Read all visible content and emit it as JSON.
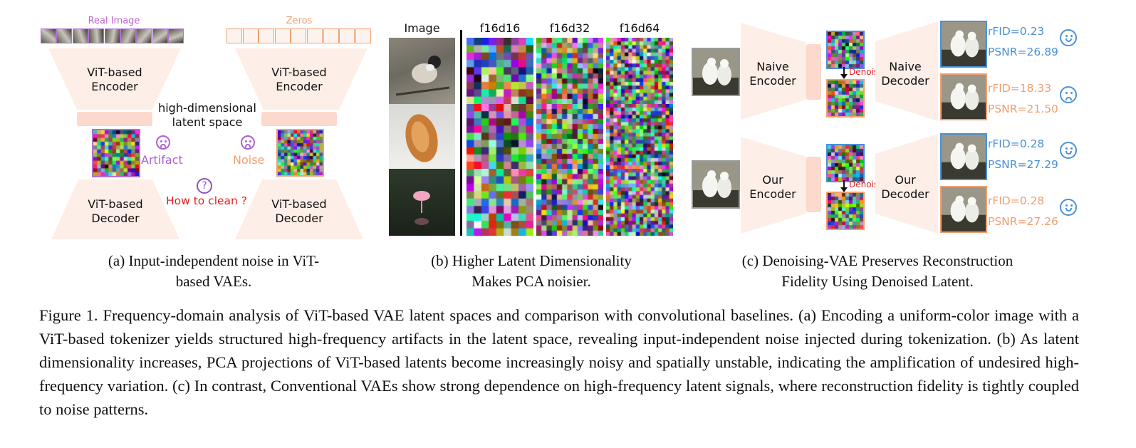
{
  "panel_a": {
    "real_image_label": "Real Image",
    "zeros_label": "Zeros",
    "encoder_left": [
      "ViT-based",
      "Encoder"
    ],
    "encoder_right": [
      "ViT-based",
      "Encoder"
    ],
    "decoder_left": [
      "ViT-based",
      "Decoder"
    ],
    "decoder_right": [
      "ViT-based",
      "Decoder"
    ],
    "latent_space": [
      "high-dimensional",
      "latent space"
    ],
    "artifact_label": "Artifact",
    "noise_label": "Noise",
    "question_label": "How to clean ?",
    "caption": [
      "(a) Input-independent noise in ViT-",
      "based VAEs."
    ]
  },
  "panel_b": {
    "col_headers": [
      "Image",
      "f16d16",
      "f16d32",
      "f16d64"
    ],
    "caption": [
      "(b) Higher Latent Dimensionality",
      "Makes PCA noisier."
    ]
  },
  "panel_c": {
    "naive_encoder": [
      "Naive",
      "Encoder"
    ],
    "naive_decoder": [
      "Naive",
      "Decoder"
    ],
    "our_encoder": [
      "Our",
      "Encoder"
    ],
    "our_decoder": [
      "Our",
      "Decoder"
    ],
    "denoise_label": "Denoise",
    "metrics": [
      {
        "rfid": "rFID=0.23",
        "psnr": "PSNR=26.89",
        "color": "#4a90d9",
        "mood": "happy"
      },
      {
        "rfid": "rFID=18.33",
        "psnr": "PSNR=21.50",
        "color": "#f0a070",
        "mood": "sad"
      },
      {
        "rfid": "rFID=0.28",
        "psnr": "PSNR=27.29",
        "color": "#4a90d9",
        "mood": "happy"
      },
      {
        "rfid": "rFID=0.28",
        "psnr": "PSNR=27.26",
        "color": "#f0a070",
        "mood": "happy"
      }
    ],
    "caption": [
      "(c) Denoising-VAE Preserves Reconstruction",
      "Fidelity Using Denoised Latent."
    ]
  },
  "figure_caption": "Figure 1.  Frequency-domain analysis of ViT-based VAE latent spaces and comparison with convolutional baselines.  (a) Encoding a uniform-color image with a ViT-based tokenizer yields structured high-frequency artifacts in the latent space, revealing input-independent noise injected during tokenization. (b) As latent dimensionality increases, PCA projections of ViT-based latents become increasingly noisy and spatially unstable, indicating the amplification of undesired high-frequency variation. (c) In contrast, Conventional VAEs show strong dependence on high-frequency latent signals, where reconstruction fidelity is tightly coupled to noise patterns.",
  "colors": {
    "trapezoid": "#fdeee7",
    "latent_bar": "#fbd9cc",
    "purple": "#b060d0",
    "orange": "#f0a070",
    "red": "#e02020",
    "blue": "#4a90d9"
  }
}
